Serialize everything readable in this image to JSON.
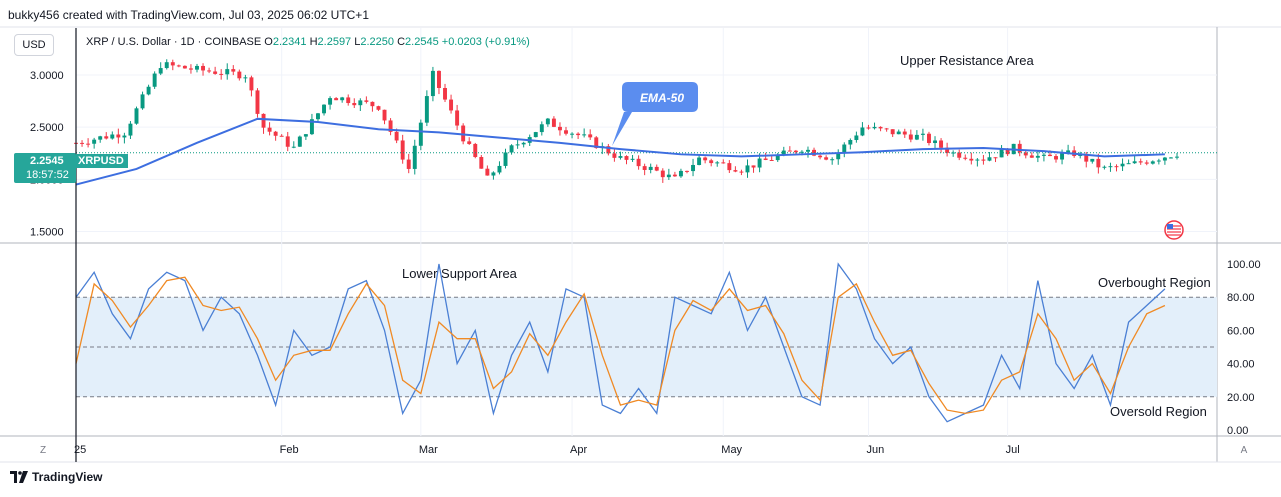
{
  "header": {
    "attribution": "bukky456 created with TradingView.com, Jul 03, 2025 06:02 UTC+1"
  },
  "toolbar": {
    "currency": "USD"
  },
  "legend": {
    "symbol": "XRP / U.S. Dollar · 1D · COINBASE",
    "open_label": "O",
    "open": "2.2341",
    "high_label": "H",
    "high": "2.2597",
    "low_label": "L",
    "low": "2.2250",
    "close_label": "C",
    "close": "2.2545",
    "change": "+0.0203 (+0.91%)"
  },
  "price_tag": {
    "price": "2.2545",
    "countdown": "18:57:52",
    "symbol": "XRPUSD"
  },
  "brand": {
    "name": "TradingView"
  },
  "corner_buttons": {
    "left": "Z",
    "right": "A"
  },
  "colors": {
    "up": "#089981",
    "down": "#f23645",
    "ema": "#3d6ee0",
    "stoch_k": "#4a7fd4",
    "stoch_d": "#f08a24",
    "band": "#e3effa",
    "callout": "#5b8def"
  },
  "chart_data": [
    {
      "type": "candlestick",
      "title": "",
      "yticks": [
        "3.0000",
        "2.5000",
        "2.0000",
        "1.5000"
      ],
      "ylim": [
        1.4,
        3.45
      ],
      "xticks": [
        "25",
        "Feb",
        "Mar",
        "Apr",
        "May",
        "Jun",
        "Jul"
      ],
      "annotations": [
        "Upper Resistance Area",
        "EMA-50"
      ],
      "series": [
        {
          "name": "EMA-50",
          "x": [
            0,
            10,
            20,
            30,
            40,
            50,
            60,
            70,
            80,
            90,
            100,
            110,
            120,
            130,
            140,
            150,
            160,
            170,
            180
          ],
          "values": [
            1.95,
            2.1,
            2.35,
            2.58,
            2.55,
            2.48,
            2.45,
            2.4,
            2.35,
            2.29,
            2.24,
            2.22,
            2.24,
            2.26,
            2.29,
            2.3,
            2.27,
            2.22,
            2.24
          ]
        },
        {
          "name": "XRPUSD",
          "x_start": 0,
          "x_end": 182,
          "close_trend": [
            [
              0,
              2.35
            ],
            [
              8,
              2.45
            ],
            [
              14,
              3.1
            ],
            [
              20,
              3.05
            ],
            [
              28,
              3.0
            ],
            [
              31,
              2.5
            ],
            [
              36,
              2.3
            ],
            [
              42,
              2.8
            ],
            [
              50,
              2.7
            ],
            [
              55,
              2.1
            ],
            [
              59,
              3.0
            ],
            [
              64,
              2.4
            ],
            [
              68,
              2.0
            ],
            [
              72,
              2.3
            ],
            [
              78,
              2.55
            ],
            [
              84,
              2.4
            ],
            [
              90,
              2.2
            ],
            [
              95,
              2.1
            ],
            [
              99,
              2.0
            ],
            [
              103,
              2.2
            ],
            [
              110,
              2.1
            ],
            [
              115,
              2.2
            ],
            [
              120,
              2.3
            ],
            [
              125,
              2.2
            ],
            [
              130,
              2.5
            ],
            [
              135,
              2.45
            ],
            [
              140,
              2.4
            ],
            [
              145,
              2.25
            ],
            [
              150,
              2.2
            ],
            [
              155,
              2.3
            ],
            [
              160,
              2.2
            ],
            [
              165,
              2.25
            ],
            [
              170,
              2.1
            ],
            [
              175,
              2.15
            ],
            [
              182,
              2.25
            ]
          ]
        }
      ]
    },
    {
      "type": "line",
      "title": "",
      "yticks": [
        "100.00",
        "80.00",
        "60.00",
        "40.00",
        "20.00",
        "0.00"
      ],
      "ylim": [
        0,
        100
      ],
      "band": [
        20,
        80
      ],
      "annotations": [
        "Lower Support Area",
        "Overbought Region",
        "Oversold Region"
      ],
      "series": [
        {
          "name": "",
          "x": [
            0,
            3,
            6,
            9,
            12,
            15,
            18,
            21,
            24,
            27,
            30,
            33,
            36,
            39,
            42,
            45,
            48,
            51,
            54,
            57,
            60,
            63,
            66,
            69,
            72,
            75,
            78,
            81,
            84,
            87,
            90,
            93,
            96,
            99,
            102,
            105,
            108,
            111,
            114,
            117,
            120,
            123,
            126,
            129,
            132,
            135,
            138,
            141,
            144,
            147,
            150,
            153,
            156,
            159,
            162,
            165,
            168,
            171,
            174,
            177,
            180
          ],
          "values": [
            80,
            95,
            70,
            55,
            85,
            95,
            90,
            60,
            80,
            70,
            45,
            15,
            60,
            45,
            50,
            85,
            90,
            60,
            10,
            30,
            100,
            40,
            60,
            10,
            45,
            65,
            35,
            85,
            80,
            15,
            10,
            25,
            10,
            80,
            75,
            70,
            95,
            60,
            80,
            50,
            20,
            15,
            100,
            85,
            55,
            40,
            50,
            20,
            5,
            10,
            15,
            45,
            25,
            90,
            40,
            25,
            45,
            15,
            65,
            75,
            85
          ]
        },
        {
          "name": "",
          "x": [
            0,
            3,
            6,
            9,
            12,
            15,
            18,
            21,
            24,
            27,
            30,
            33,
            36,
            39,
            42,
            45,
            48,
            51,
            54,
            57,
            60,
            63,
            66,
            69,
            72,
            75,
            78,
            81,
            84,
            87,
            90,
            93,
            96,
            99,
            102,
            105,
            108,
            111,
            114,
            117,
            120,
            123,
            126,
            129,
            132,
            135,
            138,
            141,
            144,
            147,
            150,
            153,
            156,
            159,
            162,
            165,
            168,
            171,
            174,
            177,
            180
          ],
          "values": [
            40,
            88,
            78,
            62,
            75,
            90,
            92,
            75,
            72,
            74,
            55,
            30,
            45,
            48,
            48,
            70,
            88,
            75,
            30,
            22,
            65,
            55,
            55,
            25,
            35,
            58,
            45,
            65,
            82,
            45,
            15,
            18,
            15,
            60,
            78,
            72,
            85,
            72,
            75,
            58,
            30,
            18,
            80,
            88,
            65,
            45,
            48,
            28,
            12,
            10,
            12,
            30,
            35,
            70,
            55,
            30,
            40,
            22,
            50,
            70,
            75
          ]
        }
      ]
    }
  ]
}
